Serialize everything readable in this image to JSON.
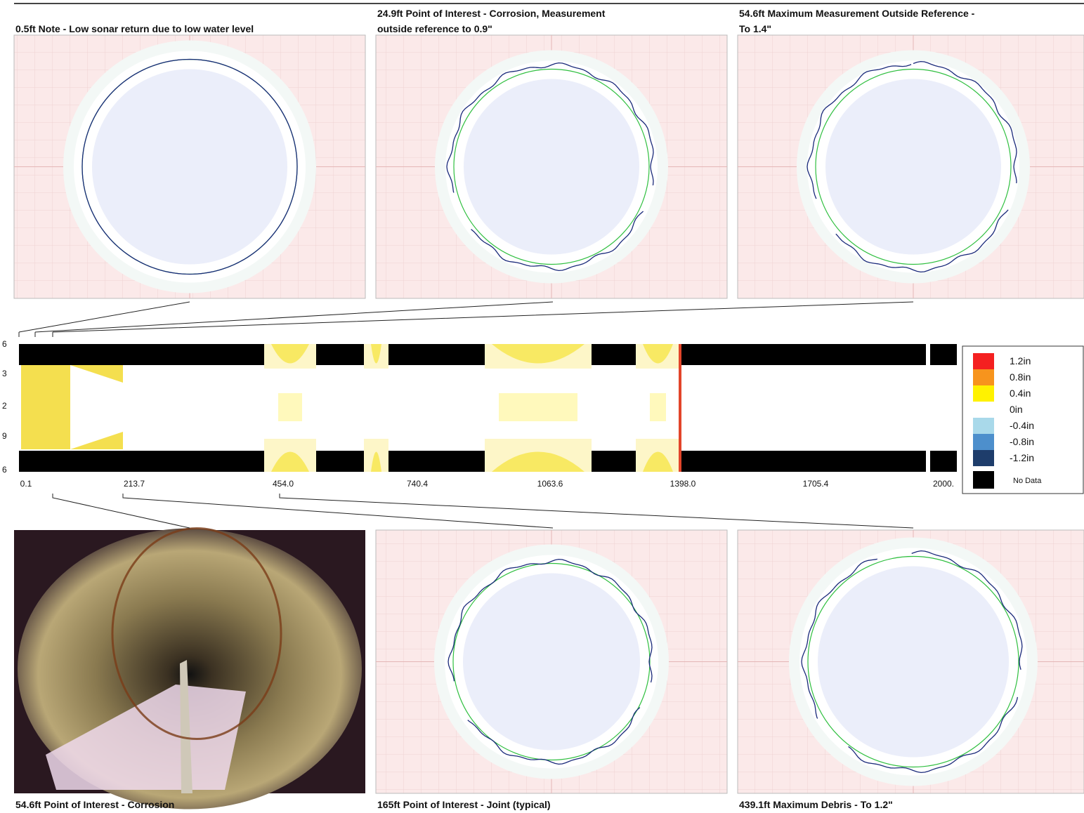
{
  "top_panels": [
    {
      "caption": [
        "0.5ft Note - Low sonar return due to low water level"
      ]
    },
    {
      "caption": [
        "24.9ft Point of Interest - Corrosion, Measurement",
        "outside reference to 0.9\""
      ]
    },
    {
      "caption": [
        "54.6ft Maximum Measurement Outside Reference -",
        "To 1.4\""
      ]
    }
  ],
  "bottom_panels": [
    {
      "caption": "54.6ft Point of Interest - Corrosion"
    },
    {
      "caption": "165ft Point of Interest - Joint (typical)"
    },
    {
      "caption": "439.1ft Maximum Debris - To 1.2\""
    }
  ],
  "profile": {
    "y_labels": [
      "6",
      "3",
      "2",
      "9",
      "6"
    ],
    "x_labels": [
      "0.1",
      "213.7",
      "454.0",
      "740.4",
      "1063.6",
      "1398.0",
      "1705.4",
      "2000."
    ]
  },
  "legend": [
    {
      "label": "1.2in",
      "color": "#f42020"
    },
    {
      "label": "0.8in",
      "color": "#f7941d"
    },
    {
      "label": "0.4in",
      "color": "#fff200"
    },
    {
      "label": "0in",
      "color": "#ffffff"
    },
    {
      "label": "-0.4in",
      "color": "#a9d9ea"
    },
    {
      "label": "-0.8in",
      "color": "#4d8fcc"
    },
    {
      "label": "-1.2in",
      "color": "#1e3d6b"
    },
    {
      "label": "No Data",
      "color": "#000000"
    }
  ]
}
